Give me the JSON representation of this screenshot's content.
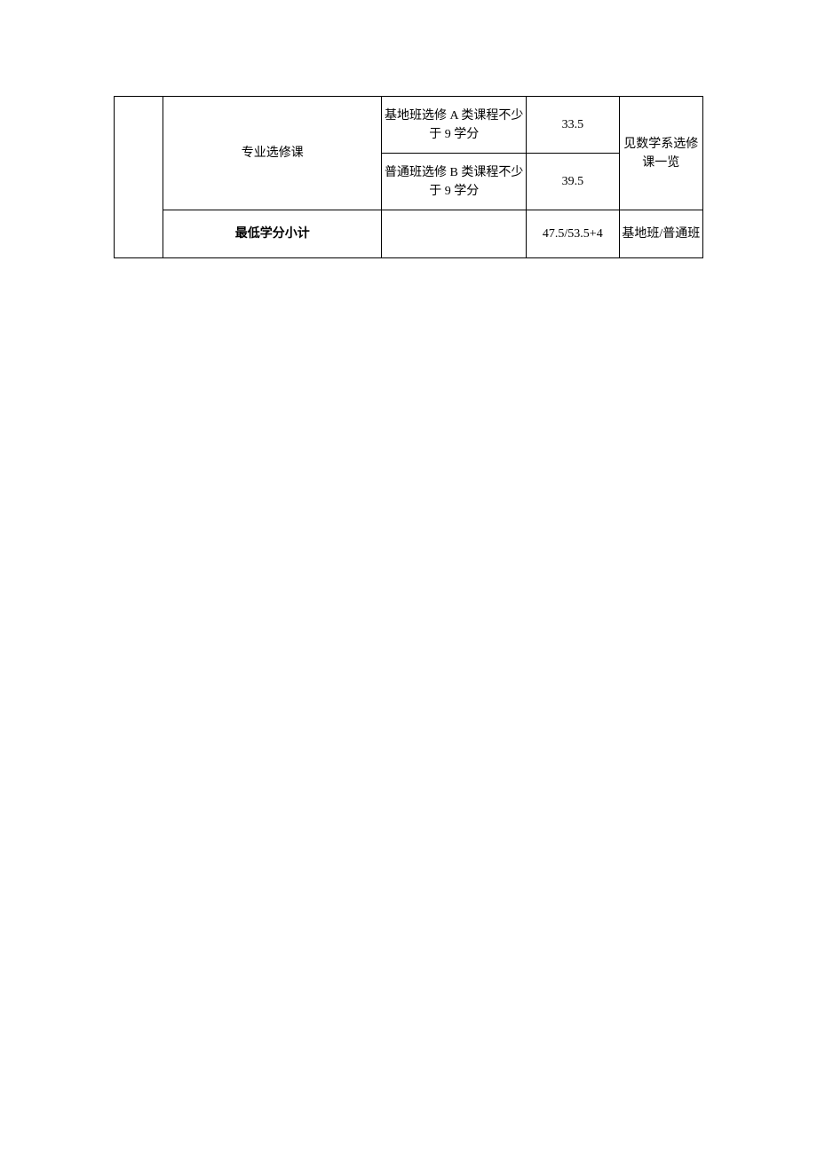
{
  "table": {
    "row1": {
      "col2": "专业选修课",
      "col3": "基地班选修 A 类课程不少于 9 学分",
      "col4": "33.5",
      "col5": "见数学系选修课一览"
    },
    "row2": {
      "col3": "普通班选修 B 类课程不少于 9 学分",
      "col4": "39.5"
    },
    "row3": {
      "col2": "最低学分小计",
      "col3": "",
      "col4": "47.5/53.5+4",
      "col5": "基地班/普通班"
    }
  }
}
